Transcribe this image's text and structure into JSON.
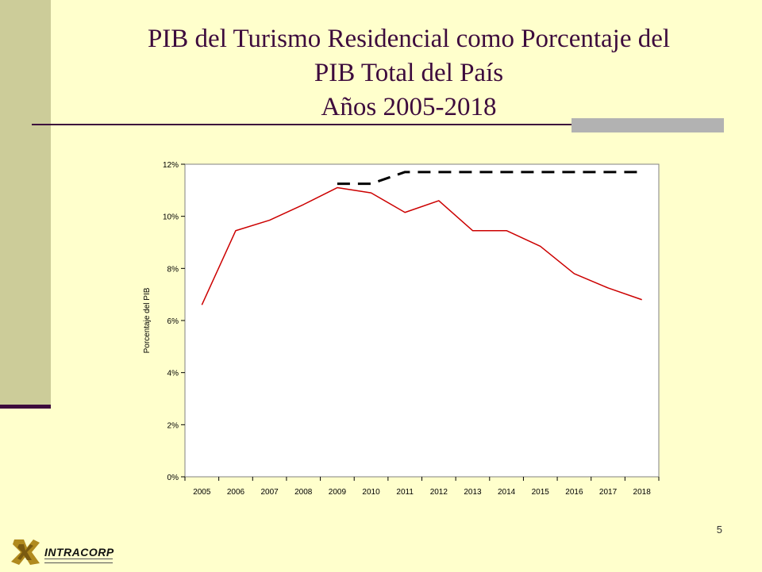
{
  "slide": {
    "title_lines": [
      "PIB del Turismo Residencial como Porcentaje del",
      "PIB Total del País",
      "Años 2005-2018"
    ],
    "page_number": "5",
    "logo_text": "INTRACORP"
  },
  "chart_data": {
    "type": "line",
    "title": "",
    "xlabel": "",
    "ylabel": "Porcentaje del PIB",
    "categories": [
      "2005",
      "2006",
      "2007",
      "2008",
      "2009",
      "2010",
      "2011",
      "2012",
      "2013",
      "2014",
      "2015",
      "2016",
      "2017",
      "2018"
    ],
    "y_ticks": [
      "0%",
      "2%",
      "4%",
      "6%",
      "8%",
      "10%",
      "12%"
    ],
    "ylim": [
      0,
      12
    ],
    "grid": false,
    "series": [
      {
        "values": [
          6.6,
          9.45,
          9.85,
          10.45,
          11.1,
          10.9,
          10.15,
          10.6,
          9.45,
          9.45,
          8.85,
          7.8,
          7.25,
          6.8
        ],
        "color": "#CC0000",
        "style": "solid"
      },
      {
        "x": [
          "2009",
          "2010",
          "2011",
          "2012",
          "2013",
          "2014",
          "2015",
          "2016",
          "2017",
          "2018"
        ],
        "values": [
          11.25,
          11.25,
          11.7,
          11.7,
          11.7,
          11.7,
          11.7,
          11.7,
          11.7,
          11.7
        ],
        "color": "#000000",
        "style": "dashed"
      }
    ]
  }
}
